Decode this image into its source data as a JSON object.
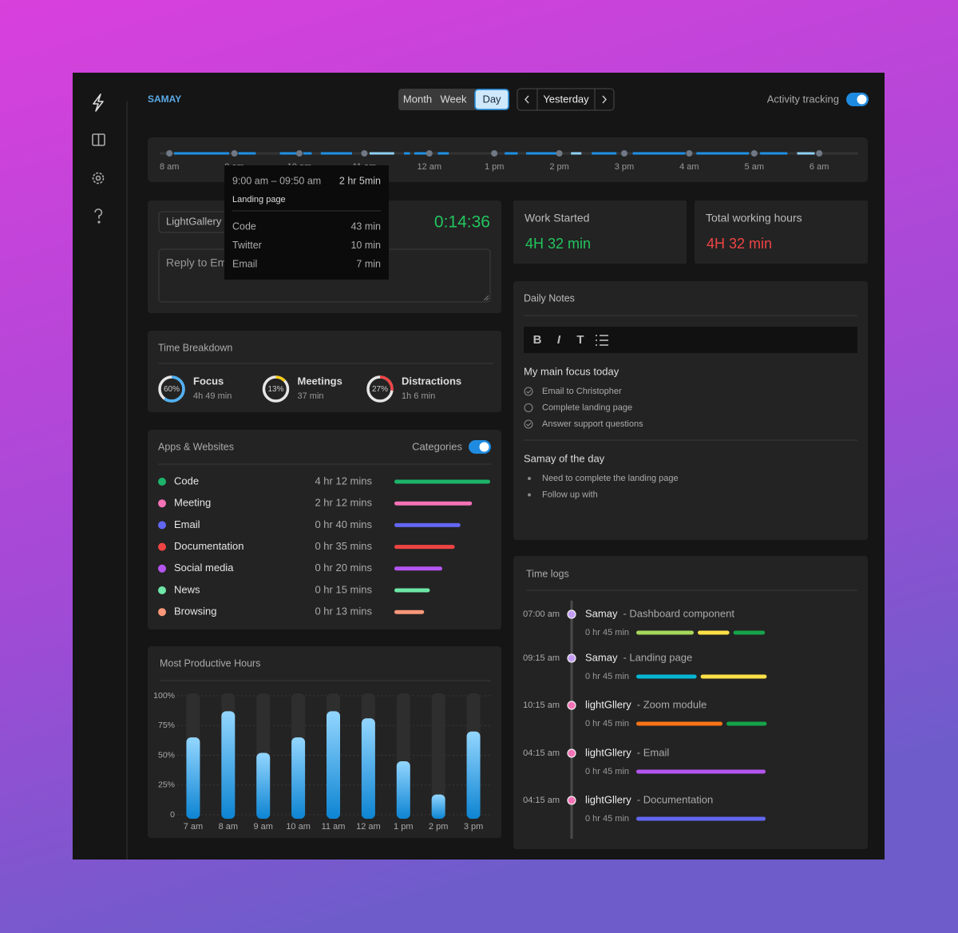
{
  "app": {
    "brand": "SAMAY",
    "views": [
      "Month",
      "Week",
      "Day"
    ],
    "active_view": 2,
    "period": "Yesterday",
    "tracking_label": "Activity tracking",
    "tracking_on": true
  },
  "timeline": {
    "xlim": [
      7.85,
      18.6
    ],
    "xticks": [
      {
        "value": 8,
        "label": "8 am"
      },
      {
        "value": 9,
        "label": "9 am"
      },
      {
        "value": 10,
        "label": "10 am"
      },
      {
        "value": 11,
        "label": "11 am"
      },
      {
        "value": 12,
        "label": "12 am"
      },
      {
        "value": 13,
        "label": "1 pm"
      },
      {
        "value": 14,
        "label": "2 pm"
      },
      {
        "value": 15,
        "label": "3 pm"
      },
      {
        "value": 16,
        "label": "4 am"
      },
      {
        "value": 17,
        "label": "5 am"
      },
      {
        "value": 18,
        "label": "6 am"
      }
    ],
    "segments": [
      {
        "start": 8.07,
        "end": 8.92,
        "color": "#1e90e6"
      },
      {
        "start": 9.06,
        "end": 9.33,
        "color": "#1e90e6"
      },
      {
        "start": 9.7,
        "end": 9.97,
        "color": "#1e90e6"
      },
      {
        "start": 10.06,
        "end": 10.19,
        "color": "#1e90e6"
      },
      {
        "start": 10.33,
        "end": 10.81,
        "color": "#1e90e6"
      },
      {
        "start": 11.08,
        "end": 11.46,
        "color": "#8fd0f7"
      },
      {
        "start": 11.61,
        "end": 11.7,
        "color": "#1e90e6"
      },
      {
        "start": 11.77,
        "end": 11.98,
        "color": "#1e90e6"
      },
      {
        "start": 12.13,
        "end": 12.3,
        "color": "#1e90e6"
      },
      {
        "start": 13.16,
        "end": 13.36,
        "color": "#1e90e6"
      },
      {
        "start": 13.49,
        "end": 13.98,
        "color": "#1e90e6"
      },
      {
        "start": 14.18,
        "end": 14.34,
        "color": "#8fd0f7"
      },
      {
        "start": 14.5,
        "end": 14.88,
        "color": "#1e90e6"
      },
      {
        "start": 15.13,
        "end": 15.94,
        "color": "#1e90e6"
      },
      {
        "start": 16.11,
        "end": 16.92,
        "color": "#1e90e6"
      },
      {
        "start": 17.09,
        "end": 17.51,
        "color": "#1e90e6"
      },
      {
        "start": 17.66,
        "end": 17.93,
        "color": "#8fd0f7"
      }
    ]
  },
  "tooltip": {
    "range": "9:00 am – 09:50 am",
    "total": "2 hr 5min",
    "title": "Landing page",
    "rows": [
      {
        "name": "Code",
        "time": "43 min"
      },
      {
        "name": "Twitter",
        "time": "10 min"
      },
      {
        "name": "Email",
        "time": "7 min"
      }
    ]
  },
  "timer": {
    "project": "LightGallery",
    "elapsed": "0:14:36",
    "placeholder": "Reply to Email"
  },
  "stats": [
    {
      "label": "Work Started",
      "value": "4H 32 min",
      "color": "#22c55e"
    },
    {
      "label": "Total working hours",
      "value": "4H 32 min",
      "color": "#ef4444"
    }
  ],
  "breakdown": {
    "title": "Time Breakdown",
    "items": [
      {
        "name": "Focus",
        "percent": {
          "value": 60,
          "label": "60%"
        },
        "time": "4h 49 min",
        "color": "#4fb0f2"
      },
      {
        "name": "Meetings",
        "percent": {
          "value": 13,
          "label": "13%"
        },
        "time": "37 min",
        "color": "#facc15"
      },
      {
        "name": "Distractions",
        "percent": {
          "value": 27,
          "label": "27%"
        },
        "time": "1h 6 min",
        "color": "#ef4444"
      }
    ]
  },
  "apps": {
    "title": "Apps & Websites",
    "toggle_label": "Categories",
    "toggle_on": true,
    "rows": [
      {
        "name": "Code",
        "time": "4 hr 12 mins",
        "color": "#1db46a",
        "share": 100
      },
      {
        "name": "Meeting",
        "time": "2 hr 12 mins",
        "color": "#f472b6",
        "share": 81
      },
      {
        "name": "Email",
        "time": "0 hr 40 mins",
        "color": "#6366f1",
        "share": 69
      },
      {
        "name": "Documentation",
        "time": "0 hr 35 mins",
        "color": "#ef4444",
        "share": 63
      },
      {
        "name": "Social media",
        "time": "0 hr 20 mins",
        "color": "#b455f0",
        "share": 50
      },
      {
        "name": "News",
        "time": "0 hr 15 mins",
        "color": "#6ee7a7",
        "share": 37
      },
      {
        "name": "Browsing",
        "time": "0 hr 13 mins",
        "color": "#f8977a",
        "share": 31
      }
    ]
  },
  "chart_data": {
    "type": "bar",
    "title": "Most Productive Hours",
    "categories": [
      "7 am",
      "8 am",
      "9 am",
      "10 am",
      "11 am",
      "12 am",
      "1 pm",
      "2 pm",
      "3 pm"
    ],
    "values": [
      65,
      87,
      52,
      65,
      87,
      81,
      45,
      17,
      70
    ],
    "ylim": [
      0,
      100
    ],
    "yticks": [
      0,
      {
        "value": 25,
        "label": "25%"
      },
      {
        "value": 50,
        "label": "50%"
      },
      {
        "value": 75,
        "label": "75%"
      },
      {
        "value": 100,
        "label": "100%"
      }
    ],
    "grid": true
  },
  "notes": {
    "title": "Daily Notes",
    "toolbar": [
      "B",
      "I",
      "T"
    ],
    "focus_heading": "My main focus today",
    "tasks": [
      {
        "text": "Email to Christopher",
        "done": true
      },
      {
        "text": "Complete landing page",
        "done": false
      },
      {
        "text": "Answer support questions",
        "done": true
      }
    ],
    "day_heading": "Samay of the day",
    "bullets": [
      "Need to complete the landing page",
      "Follow up with"
    ]
  },
  "time_logs": {
    "title": "Time logs",
    "entries": [
      {
        "time": "07:00 am",
        "project": "Samay",
        "task": "- Dashboard component",
        "duration": "0 hr 45 min",
        "dot": "#c49cf6",
        "segments": [
          {
            "value": 20,
            "color": "#a6d85a"
          },
          {
            "value": 11,
            "color": "#fde047"
          },
          {
            "value": 11,
            "color": "#16a34a"
          }
        ]
      },
      {
        "time": "09:15 am",
        "project": "Samay",
        "task": "- Landing page",
        "duration": "0 hr 45 min",
        "dot": "#c49cf6",
        "segments": [
          {
            "value": 21,
            "color": "#06b6d4"
          },
          {
            "value": 23,
            "color": "#fde047"
          }
        ]
      },
      {
        "time": "10:15 am",
        "project": "lightGllery",
        "task": "- Zoom module",
        "duration": "0 hr 45 min",
        "dot": "#f472b6",
        "segments": [
          {
            "value": 30,
            "color": "#f97316"
          },
          {
            "value": 14,
            "color": "#16a34a"
          }
        ]
      },
      {
        "time": "04:15 am",
        "project": "lightGllery",
        "task": "- Email",
        "duration": "0 hr 45 min",
        "dot": "#f472b6",
        "segments": [
          {
            "value": 45,
            "color": "#b455f0"
          }
        ]
      },
      {
        "time": "04:15 am",
        "project": "lightGllery",
        "task": "- Documentation",
        "duration": "0 hr 45 min",
        "dot": "#f472b6",
        "segments": [
          {
            "value": 45,
            "color": "#6366f1"
          }
        ]
      }
    ]
  }
}
